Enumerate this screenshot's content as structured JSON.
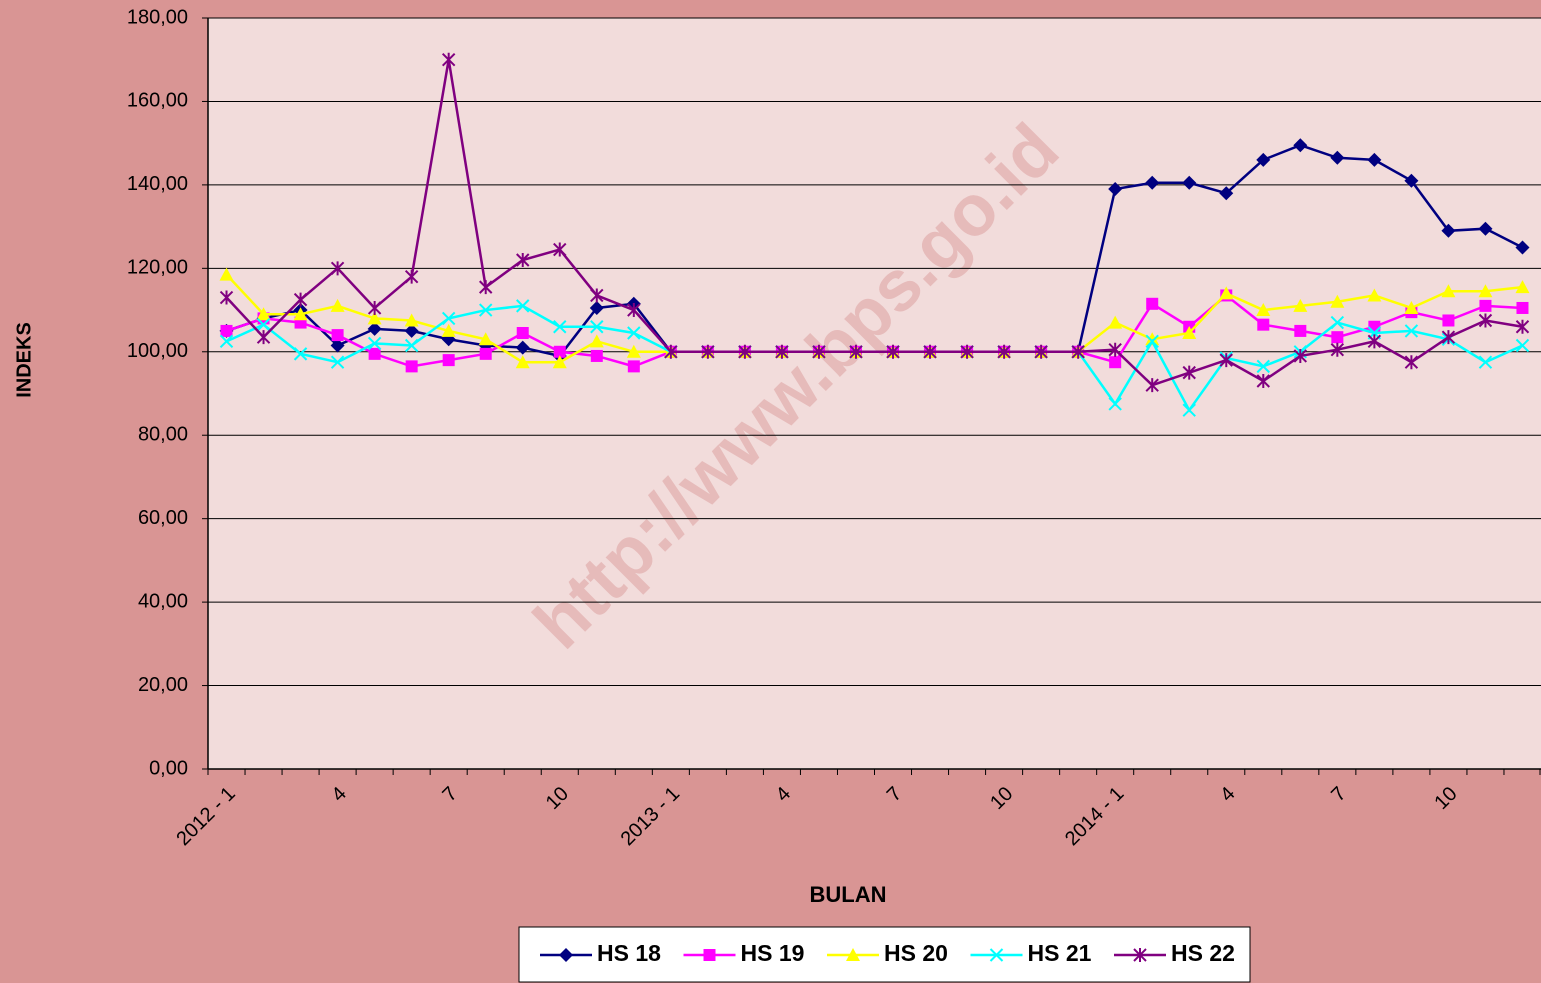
{
  "chart_data": {
    "type": "line",
    "watermark": "http://www.bps.go.id",
    "x_label": "BULAN",
    "y_label": "INDEKS",
    "categories": [
      "2012 - 1",
      null,
      null,
      "4",
      null,
      null,
      "7",
      null,
      null,
      "10",
      null,
      null,
      "2013 - 1",
      null,
      null,
      "4",
      null,
      null,
      "7",
      null,
      null,
      "10",
      null,
      null,
      "2014 - 1",
      null,
      null,
      "4",
      null,
      null,
      "7",
      null,
      null,
      "10",
      null,
      null
    ],
    "series": [
      {
        "name": "HS 18",
        "color": "#000080",
        "marker": "diamond",
        "values": [
          105,
          108,
          110,
          101.5,
          105.5,
          105,
          103,
          101.5,
          101,
          99,
          110.5,
          111.5,
          100,
          100,
          100,
          100,
          100,
          100,
          100,
          100,
          100,
          100,
          100,
          100,
          139,
          140.5,
          140.5,
          138,
          146,
          149.5,
          146.5,
          146,
          141,
          129,
          129.5,
          125
        ]
      },
      {
        "name": "HS 19",
        "color": "#ff00ff",
        "marker": "square",
        "values": [
          105,
          108,
          107,
          104,
          99.5,
          96.5,
          98,
          99.5,
          104.5,
          100,
          99,
          96.5,
          100,
          100,
          100,
          100,
          100,
          100,
          100,
          100,
          100,
          100,
          100,
          100,
          97.5,
          111.5,
          106,
          113.5,
          106.5,
          105,
          103.5,
          106,
          109.5,
          107.5,
          111,
          110.5
        ]
      },
      {
        "name": "HS 20",
        "color": "#ffff00",
        "marker": "triangle",
        "values": [
          118.5,
          109,
          109,
          111,
          108,
          107.5,
          105,
          103,
          97.5,
          97.5,
          102.5,
          100,
          100,
          100,
          100,
          100,
          100,
          100,
          100,
          100,
          100,
          100,
          100,
          100,
          107,
          103,
          104.5,
          114,
          110,
          111,
          112,
          113.5,
          110.5,
          114.5,
          114.5,
          115.5
        ]
      },
      {
        "name": "HS 21",
        "color": "#00ffff",
        "marker": "x",
        "values": [
          102.5,
          106.5,
          99.5,
          97.5,
          102,
          101.5,
          108,
          110,
          111,
          106,
          106,
          104.5,
          100,
          100,
          100,
          100,
          100,
          100,
          100,
          100,
          100,
          100,
          100,
          100,
          87.5,
          102.5,
          86,
          98.5,
          96.5,
          100,
          107,
          104.5,
          105,
          103,
          97.5,
          101.5
        ]
      },
      {
        "name": "HS 22",
        "color": "#800080",
        "marker": "star",
        "values": [
          113,
          103.5,
          112.5,
          120,
          110.5,
          118,
          170,
          115.5,
          122,
          124.5,
          113.5,
          110,
          100,
          100,
          100,
          100,
          100,
          100,
          100,
          100,
          100,
          100,
          100,
          100,
          100.5,
          92,
          95,
          98,
          93,
          99,
          100.5,
          102.5,
          97.5,
          103.5,
          107.5,
          106
        ]
      }
    ],
    "ylim": [
      0,
      180
    ],
    "yticks": [
      {
        "value": 0,
        "label": "0,00"
      },
      {
        "value": 20,
        "label": "20,00"
      },
      {
        "value": 40,
        "label": "40,00"
      },
      {
        "value": 60,
        "label": "60,00"
      },
      {
        "value": 80,
        "label": "80,00"
      },
      {
        "value": 100,
        "label": "100,00"
      },
      {
        "value": 120,
        "label": "120,00"
      },
      {
        "value": 140,
        "label": "140,00"
      },
      {
        "value": 160,
        "label": "160,00"
      },
      {
        "value": 180,
        "label": "180,00"
      }
    ],
    "grid": true,
    "legend": "bottom"
  }
}
